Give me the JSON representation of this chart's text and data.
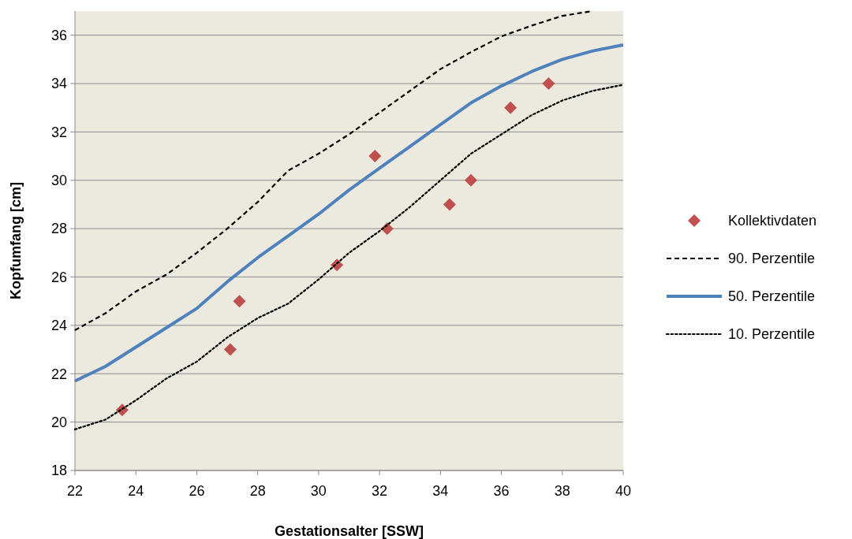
{
  "chart_data": {
    "type": "line",
    "xlabel": "Gestationsalter [SSW]",
    "ylabel": "Kopfumfang [cm]",
    "xlim": [
      22,
      40
    ],
    "xticks": [
      22,
      24,
      26,
      28,
      30,
      32,
      34,
      36,
      38,
      40
    ],
    "ylim": [
      18,
      37
    ],
    "yticks": [
      18,
      20,
      22,
      24,
      26,
      28,
      30,
      32,
      34,
      36
    ],
    "grid": "y",
    "legend": "right",
    "series": [
      {
        "name": "Kollektivdaten",
        "type": "scatter",
        "marker": "diamond",
        "color": "#c0504d",
        "x": [
          23.55,
          27.1,
          27.4,
          30.6,
          31.85,
          32.25,
          34.3,
          35,
          36.3,
          37.55
        ],
        "values": [
          20.5,
          23,
          25,
          26.5,
          31,
          28,
          29,
          30,
          33,
          34
        ]
      },
      {
        "name": "90. Perzentile",
        "line_style": "dashed",
        "marker": "none",
        "color": "#000000",
        "x": [
          22,
          23,
          24,
          25,
          26,
          27,
          28,
          29,
          30,
          31,
          32,
          33,
          34,
          35,
          36,
          37,
          38,
          39
        ],
        "values": [
          23.8,
          24.5,
          25.4,
          26.1,
          27.0,
          28.0,
          29.1,
          30.4,
          31.1,
          31.9,
          32.8,
          33.7,
          34.6,
          35.3,
          35.95,
          36.4,
          36.8,
          37.0
        ]
      },
      {
        "name": "50. Perzentile",
        "line_style": "solid",
        "marker": "none",
        "color": "#4f81bd",
        "x": [
          22,
          23,
          24,
          25,
          26,
          27,
          28,
          29,
          30,
          31,
          32,
          33,
          34,
          35,
          36,
          37,
          38,
          39,
          40
        ],
        "values": [
          21.7,
          22.3,
          23.1,
          23.9,
          24.7,
          25.8,
          26.8,
          27.7,
          28.6,
          29.6,
          30.5,
          31.4,
          32.3,
          33.2,
          33.9,
          34.5,
          35.0,
          35.35,
          35.6
        ]
      },
      {
        "name": "10. Perzentile",
        "line_style": "dotted",
        "marker": "none",
        "color": "#000000",
        "x": [
          22,
          23,
          24,
          25,
          26,
          27,
          28,
          29,
          30,
          31,
          32,
          33,
          34,
          35,
          36,
          37,
          38,
          39,
          40
        ],
        "values": [
          19.7,
          20.1,
          20.9,
          21.8,
          22.5,
          23.5,
          24.3,
          24.9,
          25.9,
          27.0,
          27.9,
          28.9,
          30.0,
          31.1,
          31.9,
          32.7,
          33.3,
          33.7,
          33.95
        ]
      }
    ]
  }
}
